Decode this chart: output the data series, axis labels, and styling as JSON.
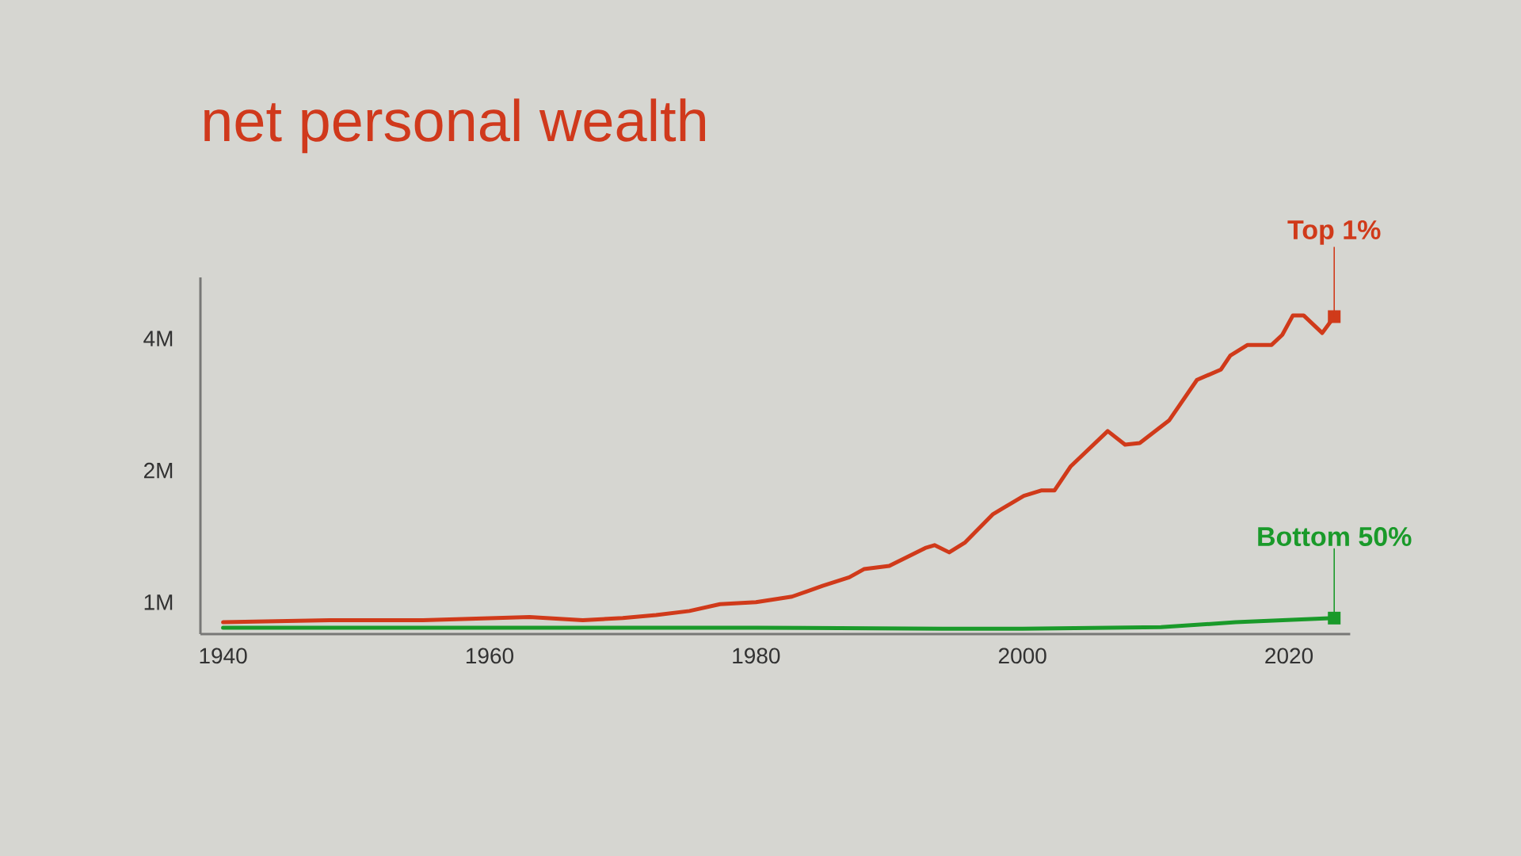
{
  "chart_data": {
    "type": "line",
    "title": "net personal wealth",
    "xlim": [
      1938.3,
      2024.6
    ],
    "xticks": [
      1940,
      1960,
      1980,
      2000,
      2020
    ],
    "ylim": [
      846000,
      5520000
    ],
    "yticks": [
      {
        "value": 1000000,
        "label": "1M"
      },
      {
        "value": 2000000,
        "label": "2M"
      },
      {
        "value": 4000000,
        "label": "4M"
      }
    ],
    "log": "y",
    "legend": false,
    "grid": false,
    "series": [
      {
        "name": "Top 1%",
        "color": "#d03a1a",
        "x": [
          1940,
          1948,
          1955,
          1963,
          1967,
          1970,
          1972.5,
          1975,
          1977.3,
          1980,
          1982.7,
          1985,
          1987,
          1988.1,
          1990,
          1992.7,
          1993.4,
          1994.5,
          1995.7,
          1997.8,
          2000.1,
          2001.4,
          2002.4,
          2003.6,
          2006.4,
          2007.7,
          2008.8,
          2011,
          2013.1,
          2014.9,
          2015.6,
          2016.9,
          2018.7,
          2019.5,
          2020.3,
          2021.1,
          2022.5,
          2023.4
        ],
        "values": [
          900000,
          910000,
          910000,
          925000,
          910000,
          920000,
          935000,
          955000,
          990000,
          1000000,
          1030000,
          1090000,
          1140000,
          1190000,
          1210000,
          1330000,
          1350000,
          1300000,
          1370000,
          1590000,
          1750000,
          1800000,
          1800000,
          2040000,
          2460000,
          2290000,
          2310000,
          2600000,
          3220000,
          3400000,
          3660000,
          3870000,
          3870000,
          4080000,
          4520000,
          4520000,
          4120000,
          4490000
        ]
      },
      {
        "name": "Bottom 50%",
        "color": "#1a9a2a",
        "x": [
          1940,
          1960,
          1980,
          1994,
          2000,
          2010.4,
          2016,
          2023.4
        ],
        "values": [
          875000,
          875000,
          875000,
          870000,
          870000,
          877000,
          900000,
          920000
        ]
      }
    ]
  }
}
